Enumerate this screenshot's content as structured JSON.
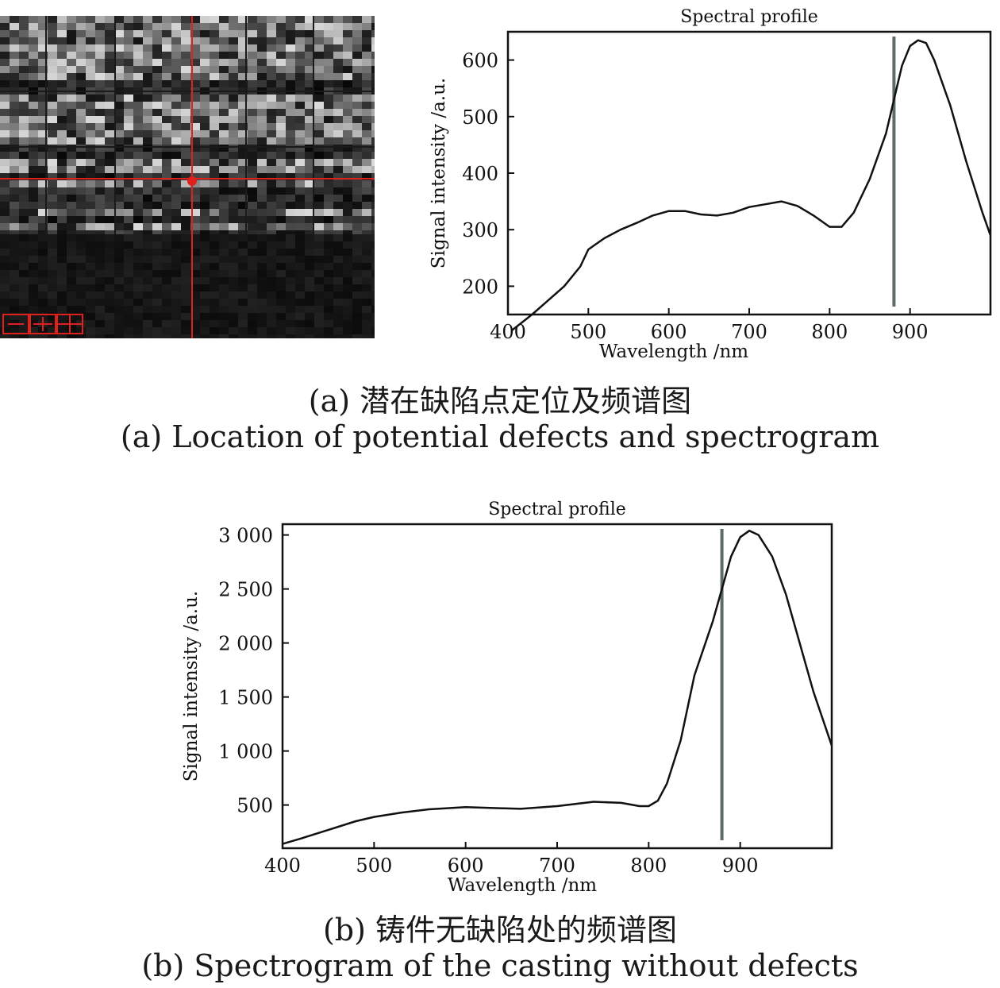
{
  "figure_a": {
    "caption_cn": "(a) 潜在缺陷点定位及频谱图",
    "caption_en": "(a) Location of potential defects and spectrogram",
    "image_icon": "hyperspectral-crosshair-image"
  },
  "figure_b": {
    "caption_cn": "(b) 铸件无缺陷处的频谱图",
    "caption_en": "(b) Spectrogram of the casting without defects"
  },
  "chart_data": [
    {
      "type": "line",
      "title": "Spectral profile",
      "xlabel": "Wavelength /nm",
      "ylabel": "Signal intensity /a.u.",
      "xlim": [
        400,
        1000
      ],
      "ylim": [
        150,
        650
      ],
      "xticks": [
        400,
        500,
        600,
        700,
        800,
        900
      ],
      "xtick_labels": [
        "400",
        "500",
        "600",
        "700",
        "800",
        "900"
      ],
      "yticks": [
        200,
        300,
        400,
        500,
        600
      ],
      "ytick_labels": [
        "200",
        "300",
        "400",
        "500",
        "600"
      ],
      "marker_line_x": 880,
      "grid": false,
      "series": [
        {
          "x": [
            405,
            430,
            450,
            470,
            490,
            500,
            520,
            540,
            560,
            580,
            600,
            620,
            640,
            660,
            680,
            700,
            720,
            740,
            760,
            780,
            800,
            815,
            830,
            850,
            870,
            880,
            890,
            900,
            910,
            920,
            930,
            950,
            970,
            990,
            1000
          ],
          "values": [
            122,
            150,
            175,
            200,
            235,
            265,
            285,
            300,
            312,
            325,
            333,
            333,
            327,
            325,
            330,
            340,
            345,
            350,
            342,
            325,
            305,
            305,
            330,
            390,
            470,
            530,
            590,
            625,
            635,
            630,
            600,
            520,
            420,
            330,
            290
          ]
        }
      ]
    },
    {
      "type": "line",
      "title": "Spectral profile",
      "xlabel": "Wavelength /nm",
      "ylabel": "Signal intensity /a.u.",
      "xlim": [
        400,
        1000
      ],
      "ylim": [
        100,
        3100
      ],
      "xticks": [
        400,
        500,
        600,
        700,
        800,
        900
      ],
      "xtick_labels": [
        "400",
        "500",
        "600",
        "700",
        "800",
        "900"
      ],
      "yticks": [
        500,
        1000,
        1500,
        2000,
        2500,
        3000
      ],
      "ytick_labels": [
        "500",
        "1 000",
        "1 500",
        "2 000",
        "2 500",
        "3 000"
      ],
      "marker_line_x": 880,
      "grid": false,
      "series": [
        {
          "x": [
            400,
            420,
            450,
            480,
            500,
            530,
            560,
            600,
            640,
            660,
            700,
            740,
            770,
            790,
            800,
            810,
            820,
            835,
            850,
            870,
            880,
            890,
            900,
            910,
            920,
            935,
            950,
            965,
            980,
            1000
          ],
          "values": [
            140,
            190,
            270,
            350,
            390,
            430,
            460,
            480,
            470,
            465,
            490,
            530,
            520,
            490,
            490,
            540,
            700,
            1100,
            1700,
            2200,
            2500,
            2800,
            2980,
            3040,
            3000,
            2800,
            2450,
            2000,
            1550,
            1050
          ]
        }
      ]
    }
  ]
}
